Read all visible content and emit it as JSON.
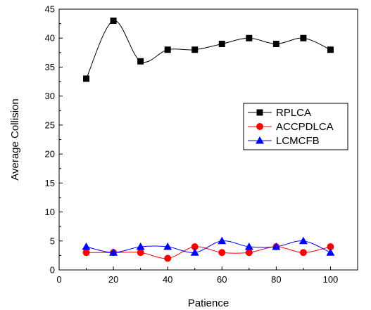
{
  "chart_data": {
    "type": "line",
    "xlabel": "Patience",
    "ylabel": "Average Collision",
    "xlim": [
      0,
      110
    ],
    "ylim": [
      0,
      45
    ],
    "xticks": [
      0,
      20,
      40,
      60,
      80,
      100
    ],
    "yticks": [
      0,
      5,
      10,
      15,
      20,
      25,
      30,
      35,
      40,
      45
    ],
    "x": [
      10,
      20,
      30,
      40,
      50,
      60,
      70,
      80,
      90,
      100
    ],
    "legend_position": "right-middle",
    "grid": false,
    "series": [
      {
        "name": "RPLCA",
        "values": [
          33,
          43,
          36,
          38,
          38,
          39,
          40,
          39,
          40,
          38
        ],
        "color": "#000000",
        "marker": "square"
      },
      {
        "name": "ACCPDLCA",
        "values": [
          3,
          3,
          3,
          2,
          4,
          3,
          3,
          4,
          3,
          4
        ],
        "color": "#ff0000",
        "marker": "circle"
      },
      {
        "name": "LCMCFB",
        "values": [
          4,
          3,
          4,
          4,
          3,
          5,
          4,
          4,
          5,
          3
        ],
        "color": "#0000ff",
        "marker": "triangle"
      }
    ]
  }
}
